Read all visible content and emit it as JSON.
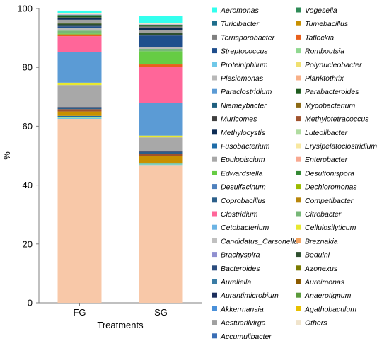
{
  "chart_data": {
    "type": "bar",
    "stacked": true,
    "categories": [
      "FG",
      "SG"
    ],
    "xlabel": "Treatments",
    "ylabel": "%",
    "ylim": [
      0,
      100
    ],
    "yticks": [
      0,
      20,
      40,
      60,
      80,
      100
    ],
    "legend_position": "right",
    "legend_columns": 2,
    "legend": [
      {
        "name": "Aeromonas",
        "color": "#33FFEE"
      },
      {
        "name": "Vogesella",
        "color": "#2E8B57"
      },
      {
        "name": "Turicibacter",
        "color": "#1F6E8C"
      },
      {
        "name": "Tumebacillus",
        "color": "#C89000"
      },
      {
        "name": "Terrisporobacter",
        "color": "#808080"
      },
      {
        "name": "Tatlockia",
        "color": "#E8601C"
      },
      {
        "name": "Streptococcus",
        "color": "#1F4E8C"
      },
      {
        "name": "Romboutsia",
        "color": "#90D890"
      },
      {
        "name": "Proteiniphilum",
        "color": "#70C8E8"
      },
      {
        "name": "Polynucleobacter",
        "color": "#F0E070"
      },
      {
        "name": "Plesiomonas",
        "color": "#B8B8B8"
      },
      {
        "name": "Planktothrix",
        "color": "#F8B088"
      },
      {
        "name": "Paraclostridium",
        "color": "#5B9BD5"
      },
      {
        "name": "Parabacteroides",
        "color": "#1E5B1E"
      },
      {
        "name": "Niameybacter",
        "color": "#1F5F7F"
      },
      {
        "name": "Mycobacterium",
        "color": "#8B6914"
      },
      {
        "name": "Muricomes",
        "color": "#404040"
      },
      {
        "name": "Methylotetracoccus",
        "color": "#A0522D"
      },
      {
        "name": "Methylocystis",
        "color": "#0D2C54"
      },
      {
        "name": "Luteolibacter",
        "color": "#B0DCA0"
      },
      {
        "name": "Fusobacterium",
        "color": "#1F6CA8"
      },
      {
        "name": "Erysipelatoclostridium",
        "color": "#F8E8A0"
      },
      {
        "name": "Epulopiscium",
        "color": "#A8A8A8"
      },
      {
        "name": "Enterobacter",
        "color": "#F8A890"
      },
      {
        "name": "Edwardsiella",
        "color": "#66CC44"
      },
      {
        "name": "Desulfonispora",
        "color": "#338833"
      },
      {
        "name": "Desulfacinum",
        "color": "#4F81BD"
      },
      {
        "name": "Dechloromonas",
        "color": "#9BBB00"
      },
      {
        "name": "Coprobacillus",
        "color": "#2C5F8A"
      },
      {
        "name": "Competibacter",
        "color": "#B8860B"
      },
      {
        "name": "Clostridium",
        "color": "#FF6699"
      },
      {
        "name": "Citrobacter",
        "color": "#77B777"
      },
      {
        "name": "Cetobacterium",
        "color": "#6CB4E4"
      },
      {
        "name": "Cellulosilyticum",
        "color": "#E8E830"
      },
      {
        "name": "Candidatus_Carsonella",
        "color": "#C0C0C0"
      },
      {
        "name": "Breznakia",
        "color": "#F4A460"
      },
      {
        "name": "Brachyspira",
        "color": "#9090D0"
      },
      {
        "name": "Beduini",
        "color": "#2F4F2F"
      },
      {
        "name": "Bacteroides",
        "color": "#2B4C7E"
      },
      {
        "name": "Azonexus",
        "color": "#7A7A00"
      },
      {
        "name": "Aureliella",
        "color": "#3A7CA5"
      },
      {
        "name": "Aureimonas",
        "color": "#8B5A00"
      },
      {
        "name": "Aurantimicrobium",
        "color": "#1C2E5C"
      },
      {
        "name": "Anaerotignum",
        "color": "#5A9A3A"
      },
      {
        "name": "Akkermansia",
        "color": "#4A90D9"
      },
      {
        "name": "Agathobaculum",
        "color": "#E8C000"
      },
      {
        "name": "Aestuariivirga",
        "color": "#A0A0A0"
      },
      {
        "name": "Others",
        "color": "#F0E4CC"
      },
      {
        "name": "Accumulibacter",
        "color": "#3A6EB5"
      }
    ],
    "series": [
      {
        "name": "Planktothrix",
        "color": "#F8C8A8",
        "values": [
          62.5,
          46.8
        ]
      },
      {
        "name": "Proteiniphilum",
        "color": "#70C8E8",
        "values": [
          0.3,
          0.2
        ]
      },
      {
        "name": "Romboutsia",
        "color": "#90D890",
        "values": [
          0.3,
          0.3
        ]
      },
      {
        "name": "Fusobacterium",
        "color": "#1F6CA8",
        "values": [
          0.4,
          0.3
        ]
      },
      {
        "name": "Tumebacillus",
        "color": "#C89000",
        "values": [
          1.5,
          2.4
        ]
      },
      {
        "name": "Methylotetracoccus",
        "color": "#A0522D",
        "values": [
          0.8,
          0.5
        ]
      },
      {
        "name": "Coprobacillus",
        "color": "#2C5F8A",
        "values": [
          0.5,
          0.7
        ]
      },
      {
        "name": "Aurantimicrobium",
        "color": "#1C2E5C",
        "values": [
          0.2,
          0.2
        ]
      },
      {
        "name": "Epulopiscium",
        "color": "#A8A8A8",
        "values": [
          7.5,
          4.8
        ]
      },
      {
        "name": "Cellulosilyticum",
        "color": "#E8E830",
        "values": [
          0.8,
          0.6
        ]
      },
      {
        "name": "Paraclostridium",
        "color": "#5B9BD5",
        "values": [
          10.5,
          11.2
        ]
      },
      {
        "name": "Clostridium",
        "color": "#FF6699",
        "values": [
          5.3,
          12.2
        ]
      },
      {
        "name": "Tatlockia",
        "color": "#E8601C",
        "values": [
          0.6,
          0.8
        ]
      },
      {
        "name": "Edwardsiella",
        "color": "#66CC44",
        "values": [
          0.3,
          4.5
        ]
      },
      {
        "name": "Citrobacter",
        "color": "#77B777",
        "values": [
          1.0,
          0.8
        ]
      },
      {
        "name": "Plesiomonas",
        "color": "#B8B8B8",
        "values": [
          0.8,
          0.6
        ]
      },
      {
        "name": "Streptococcus",
        "color": "#1F4E8C",
        "values": [
          0.5,
          3.8
        ]
      },
      {
        "name": "Bacteroides",
        "color": "#2B4C7E",
        "values": [
          0.3,
          0.4
        ]
      },
      {
        "name": "Beduini",
        "color": "#2F4F2F",
        "values": [
          0.8,
          0.5
        ]
      },
      {
        "name": "Azonexus",
        "color": "#7A7A00",
        "values": [
          0.3,
          0.2
        ]
      },
      {
        "name": "Aestuariivirga",
        "color": "#A0A0A0",
        "values": [
          1.0,
          0.8
        ]
      },
      {
        "name": "Methylocystis",
        "color": "#0D2C54",
        "values": [
          0.5,
          0.8
        ]
      },
      {
        "name": "Terrisporobacter",
        "color": "#808080",
        "values": [
          0.3,
          0.5
        ]
      },
      {
        "name": "Parabacteroides",
        "color": "#1E5B1E",
        "values": [
          0.5,
          0.3
        ]
      },
      {
        "name": "Vogesella",
        "color": "#2E8B57",
        "values": [
          0.3,
          0.2
        ]
      },
      {
        "name": "Brachyspira",
        "color": "#9090D0",
        "values": [
          0.2,
          0.2
        ]
      },
      {
        "name": "Others",
        "color": "#F0E4CC",
        "values": [
          0.4,
          0.4
        ]
      },
      {
        "name": "Aeromonas",
        "color": "#33FFEE",
        "values": [
          0.9,
          2.4
        ]
      }
    ]
  }
}
